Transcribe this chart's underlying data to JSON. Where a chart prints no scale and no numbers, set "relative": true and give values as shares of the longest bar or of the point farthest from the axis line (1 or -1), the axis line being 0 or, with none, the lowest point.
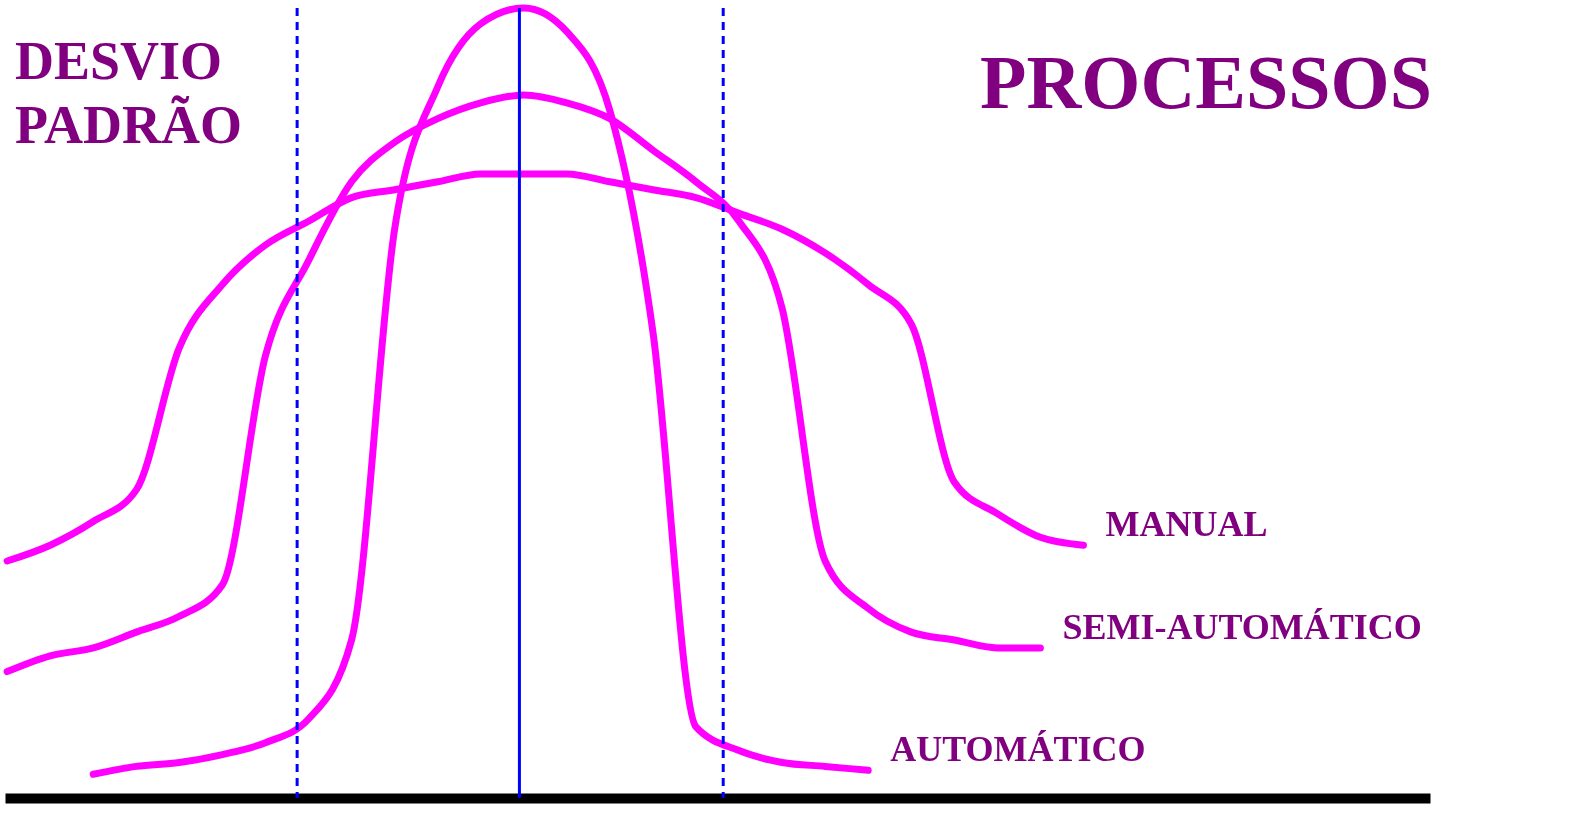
{
  "chart_data": {
    "type": "line",
    "title": "PROCESSOS",
    "relative": true,
    "line_style": "solid",
    "categories": [
      null,
      null,
      null,
      null,
      null,
      null,
      null,
      null,
      null,
      null,
      null,
      null,
      null,
      null,
      null,
      null,
      null,
      null,
      null,
      null,
      null,
      null,
      null,
      null,
      null,
      null,
      null,
      null,
      null,
      null,
      null,
      null,
      null,
      null
    ],
    "annotations": [
      "DESVIO PADRÃO"
    ],
    "series": [
      {
        "name": "MANUAL",
        "color": "#ff00ff",
        "values": [
          0.3,
          0.32,
          0.35,
          0.39,
          0.57,
          0.65,
          0.7,
          0.73,
          0.76,
          0.77,
          0.78,
          0.79,
          0.79,
          0.79,
          0.78,
          0.77,
          0.76,
          0.74,
          0.72,
          0.69,
          0.65,
          0.6,
          0.4,
          0.36,
          0.33,
          0.32,
          null,
          null,
          null,
          null,
          null,
          null,
          null,
          null
        ]
      },
      {
        "name": "SEMI-AUTOMÁTICO",
        "color": "#ff00ff",
        "values": [
          0.16,
          0.18,
          0.19,
          0.21,
          0.23,
          0.27,
          0.56,
          0.68,
          0.78,
          0.83,
          0.86,
          0.88,
          0.89,
          0.88,
          0.86,
          0.82,
          0.78,
          0.73,
          0.62,
          0.3,
          0.24,
          0.21,
          0.2,
          0.19,
          0.19,
          null,
          null,
          null,
          null,
          null,
          null,
          null,
          null,
          null
        ]
      },
      {
        "name": "AUTOMÁTICO",
        "color": "#ff00ff",
        "values": [
          null,
          null,
          0.03,
          0.04,
          0.045,
          0.055,
          0.07,
          0.1,
          0.2,
          0.72,
          0.9,
          0.98,
          1,
          0.97,
          0.87,
          0.59,
          0.09,
          0.06,
          0.045,
          0.04,
          0.035,
          null,
          null,
          null,
          null,
          null,
          null,
          null,
          null,
          null,
          null,
          null,
          null,
          null
        ]
      }
    ]
  }
}
